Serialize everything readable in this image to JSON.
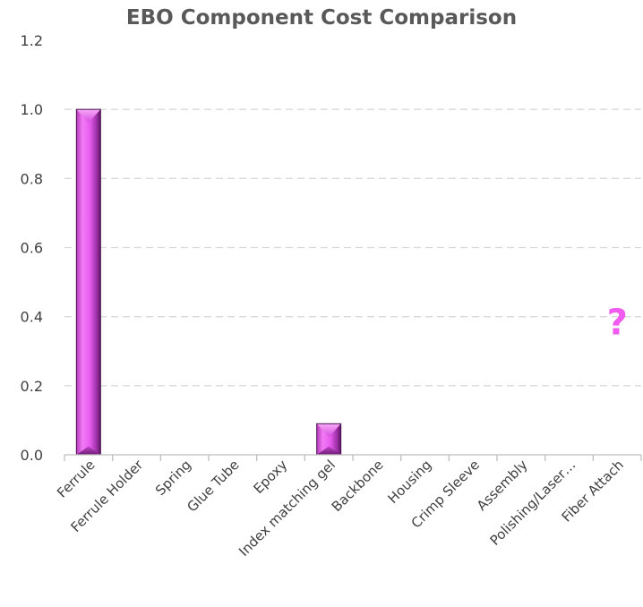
{
  "chart_data": {
    "type": "bar",
    "title": "EBO Component Cost Comparison",
    "categories": [
      "Ferrule",
      "Ferrule Holder",
      "Spring",
      "Glue Tube",
      "Epoxy",
      "Index matching gel",
      "Backbone",
      "Housing",
      "Crimp Sleeve",
      "Assembly",
      "Polishing/Laser…",
      "Fiber Attach"
    ],
    "series": [
      {
        "values": [
          1.0,
          0,
          0,
          0,
          0,
          0.09,
          0,
          0,
          0,
          0,
          0,
          0
        ]
      }
    ],
    "ylim": [
      0,
      1.2
    ],
    "yticks": [
      0.0,
      0.2,
      0.4,
      0.6,
      0.8,
      1.0,
      1.2
    ],
    "ytick_labels": [
      "0.0",
      "0.2",
      "0.4",
      "0.6",
      "0.8",
      "1.0",
      "1.2"
    ],
    "xlabel": "",
    "ylabel": "",
    "grid": true,
    "legend": "none",
    "bar_color": "#e85ef0",
    "annotations": [
      {
        "text": "?",
        "category": "Fiber Attach",
        "y": 0.4,
        "color": "#f05cf0"
      }
    ]
  }
}
